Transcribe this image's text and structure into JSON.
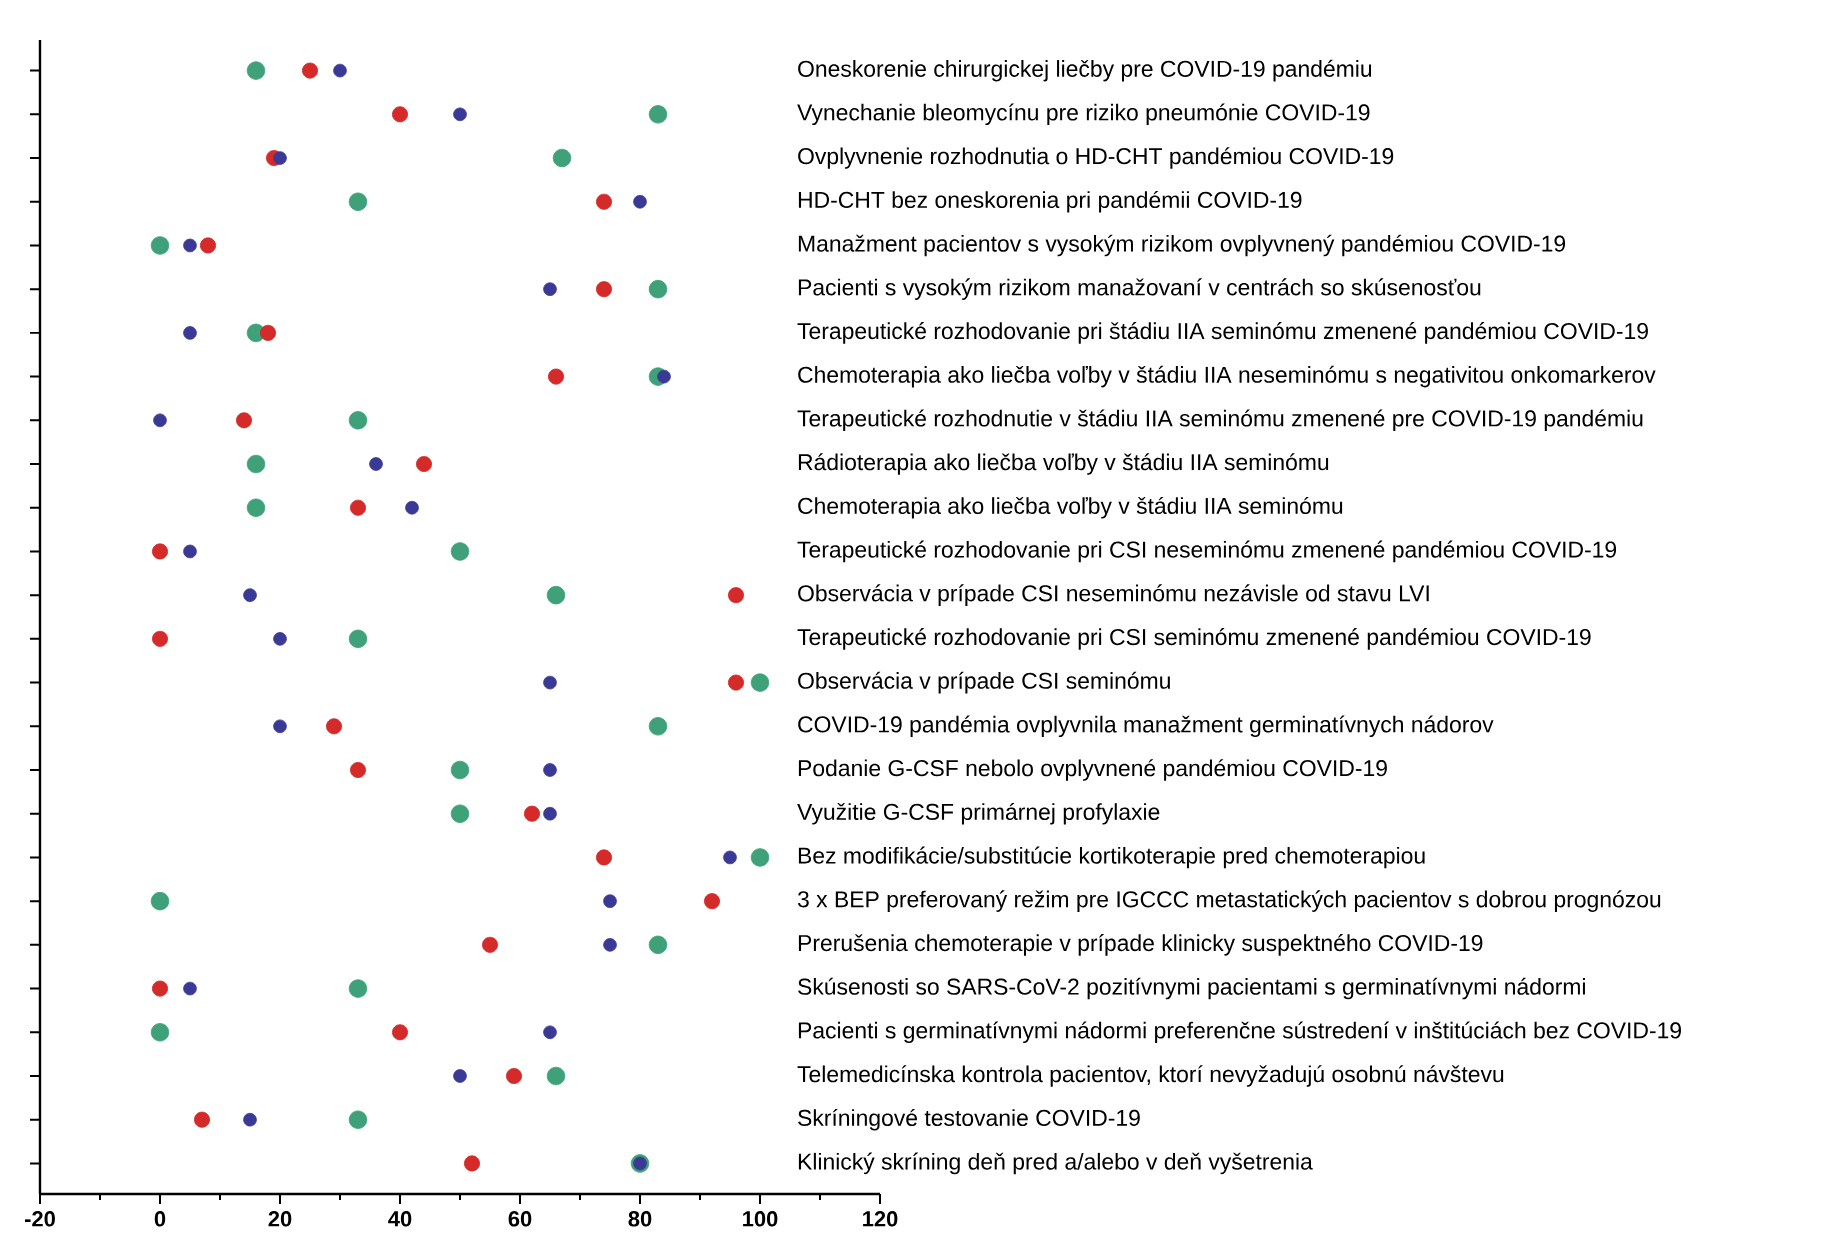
{
  "chart_data": {
    "type": "scatter",
    "orientation": "horizontal",
    "categories": [
      "Oneskorenie chirurgickej liečby pre COVID-19 pandémiu",
      "Vynechanie bleomycínu pre riziko pneumónie COVID-19",
      "Ovplyvnenie rozhodnutia o HD-CHT pandémiou COVID-19",
      "HD-CHT bez oneskorenia pri pandémii COVID-19",
      "Manažment pacientov s vysokým rizikom ovplyvnený pandémiou COVID-19",
      "Pacienti s vysokým rizikom manažovaní v centrách so skúsenosťou",
      "Terapeutické rozhodovanie pri štádiu IIA seminómu zmenené pandémiou COVID-19",
      "Chemoterapia ako liečba voľby v štádiu IIA neseminómu s negativitou onkomarkerov",
      "Terapeutické rozhodnutie v štádiu IIA seminómu zmenené pre COVID-19 pandémiu",
      "Rádioterapia ako liečba voľby v štádiu IIA seminómu",
      "Chemoterapia ako liečba voľby v štádiu IIA seminómu",
      "Terapeutické rozhodovanie pri CSI neseminómu zmenené pandémiou COVID-19",
      "Observácia v prípade CSI neseminómu nezávisle od stavu LVI",
      "Terapeutické rozhodovanie pri CSI seminómu zmenené pandémiou COVID-19",
      "Observácia v prípade CSI seminómu",
      "COVID-19 pandémia ovplyvnila manažment germinatívnych nádorov",
      "Podanie G-CSF nebolo ovplyvnené pandémiou COVID-19",
      "Využitie G-CSF primárnej profylaxie",
      "Bez modifikácie/substitúcie kortikoterapie pred chemoterapiou",
      "3 x BEP preferovaný režim pre IGCCC metastatických pacientov s dobrou prognózou",
      "Prerušenia chemoterapie v prípade klinicky suspektného COVID-19",
      "Skúsenosti so SARS-CoV-2 pozitívnymi pacientami s germinatívnymi nádormi",
      "Pacienti s germinatívnymi nádormi preferenčne sústredení v inštitúciách bez COVID-19",
      "Telemedicínska kontrola pacientov, ktorí nevyžadujú osobnú návštevu",
      "Skríningové testovanie COVID-19",
      "Klinický skríning deň pred a/alebo v deň vyšetrenia"
    ],
    "series": [
      {
        "color": "#3fa17a",
        "values": [
          16,
          83,
          67,
          33,
          0,
          83,
          16,
          83,
          33,
          16,
          16,
          50,
          66,
          33,
          100,
          83,
          50,
          50,
          100,
          0,
          83,
          33,
          0,
          66,
          33,
          80
        ]
      },
      {
        "color": "#d42a2a",
        "values": [
          25,
          40,
          19,
          74,
          8,
          74,
          18,
          66,
          14,
          44,
          33,
          0,
          96,
          0,
          96,
          29,
          33,
          62,
          74,
          92,
          55,
          0,
          40,
          59,
          7,
          52
        ]
      },
      {
        "color": "#3a3a96",
        "values": [
          30,
          50,
          20,
          80,
          5,
          65,
          5,
          84,
          0,
          36,
          42,
          5,
          15,
          20,
          65,
          20,
          65,
          65,
          95,
          75,
          75,
          5,
          65,
          50,
          15,
          80
        ]
      }
    ],
    "xlim": [
      -20,
      120
    ],
    "xticks": [
      -20,
      0,
      20,
      40,
      60,
      80,
      100,
      120
    ]
  }
}
